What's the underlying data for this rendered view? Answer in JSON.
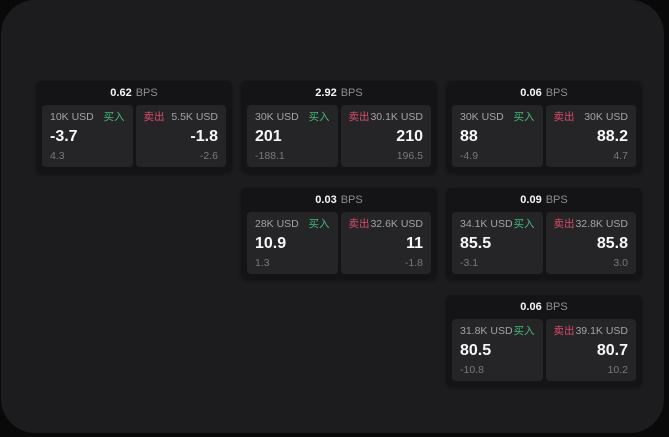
{
  "colors": {
    "outer_bg": "#09090a",
    "panel_bg": "#1c1c1e",
    "card_bg": "#141416",
    "tile_bg": "#252528",
    "buy_accent": "#3ebd78",
    "sell_accent": "#dd4a68",
    "text_primary": "#f7f7f8",
    "text_muted": "#8d8d92"
  },
  "labels": {
    "bps": "BPS",
    "buy": "买入",
    "sell": "卖出"
  },
  "cards": [
    {
      "bps": "0.62",
      "buy": {
        "size": "10K USD",
        "price": "-3.7",
        "delta": "4.3"
      },
      "sell": {
        "size": "5.5K USD",
        "price": "-1.8",
        "delta": "-2.6"
      }
    },
    {
      "bps": "2.92",
      "buy": {
        "size": "30K USD",
        "price": "201",
        "delta": "-188.1"
      },
      "sell": {
        "size": "30.1K USD",
        "price": "210",
        "delta": "196.5"
      }
    },
    {
      "bps": "0.06",
      "buy": {
        "size": "30K USD",
        "price": "88",
        "delta": "-4.9"
      },
      "sell": {
        "size": "30K USD",
        "price": "88.2",
        "delta": "4.7"
      }
    },
    {
      "bps": "0.03",
      "buy": {
        "size": "28K USD",
        "price": "10.9",
        "delta": "1.3"
      },
      "sell": {
        "size": "32.6K USD",
        "price": "11",
        "delta": "-1.8"
      }
    },
    {
      "bps": "0.09",
      "buy": {
        "size": "34.1K USD",
        "price": "85.5",
        "delta": "-3.1"
      },
      "sell": {
        "size": "32.8K USD",
        "price": "85.8",
        "delta": "3.0"
      }
    },
    {
      "bps": "0.06",
      "buy": {
        "size": "31.8K USD",
        "price": "80.5",
        "delta": "-10.8"
      },
      "sell": {
        "size": "39.1K USD",
        "price": "80.7",
        "delta": "10.2"
      }
    }
  ]
}
